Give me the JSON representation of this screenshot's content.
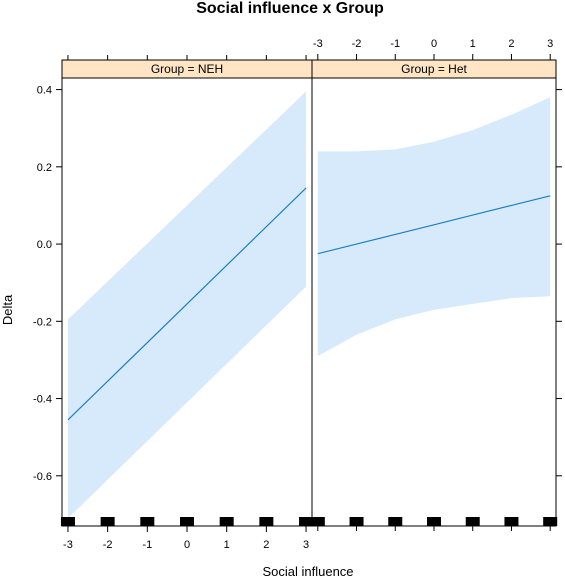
{
  "chart_data": {
    "type": "line",
    "title": "Social influence x Group",
    "xlabel": "Social influence",
    "ylabel": "Delta",
    "xlim": [
      -3.15,
      3.15
    ],
    "ylim": [
      -0.73,
      0.43
    ],
    "x_ticks": [
      -3,
      -2,
      -1,
      0,
      1,
      2,
      3
    ],
    "y_ticks": [
      -0.6,
      -0.4,
      -0.2,
      0.0,
      0.2,
      0.4
    ],
    "y_tick_labels": [
      "-0.6",
      "-0.4",
      "-0.2",
      "0.0",
      "0.2",
      "0.4"
    ],
    "grid": false,
    "rug": [
      -3,
      -2,
      -1,
      0,
      1,
      2,
      3
    ],
    "colors": {
      "line": "#1f7fc0",
      "band": "#d6eafc",
      "strip": "#ffe5c4"
    },
    "panels": [
      {
        "label": "Group = NEH",
        "x": [
          -3,
          3
        ],
        "fit": [
          -0.455,
          0.145
        ],
        "upper": [
          -0.195,
          0.395
        ],
        "lower": [
          -0.71,
          -0.11
        ]
      },
      {
        "label": "Group = Het",
        "x": [
          -3,
          -2,
          -1,
          0,
          1,
          2,
          3
        ],
        "fit": [
          -0.025,
          0.0,
          0.025,
          0.05,
          0.075,
          0.1,
          0.125
        ],
        "upper": [
          0.24,
          0.24,
          0.245,
          0.265,
          0.295,
          0.335,
          0.38
        ],
        "lower": [
          -0.29,
          -0.235,
          -0.195,
          -0.17,
          -0.155,
          -0.14,
          -0.135
        ]
      }
    ]
  }
}
